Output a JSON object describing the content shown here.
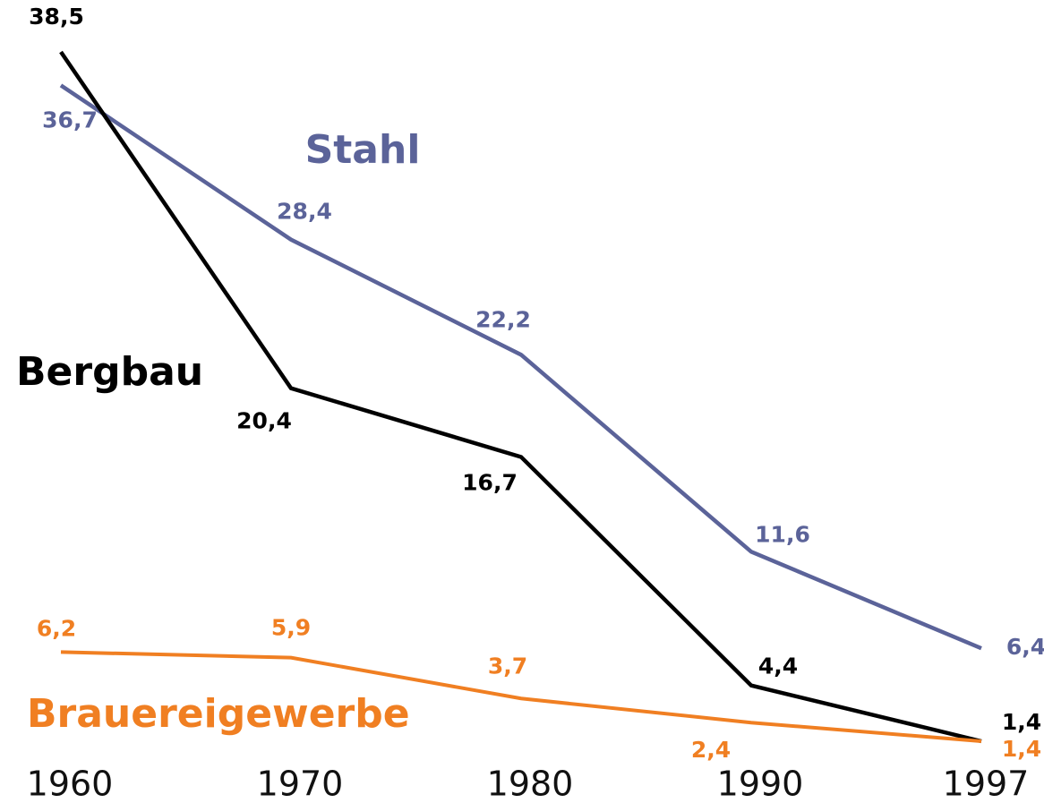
{
  "chart_data": {
    "type": "line",
    "categories": [
      "1960",
      "1970",
      "1980",
      "1990",
      "1997"
    ],
    "series": [
      {
        "name": "Stahl",
        "color": "#5b6399",
        "values": [
          36.7,
          28.4,
          22.2,
          11.6,
          6.4
        ],
        "value_labels": [
          "36,7",
          "28,4",
          "22,2",
          "11,6",
          "6,4"
        ]
      },
      {
        "name": "Bergbau",
        "color": "#000000",
        "values": [
          38.5,
          20.4,
          16.7,
          4.4,
          1.4
        ],
        "value_labels": [
          "38,5",
          "20,4",
          "16,7",
          "4,4",
          "1,4"
        ]
      },
      {
        "name": "Brauereigewerbe",
        "color": "#f07f22",
        "values": [
          6.2,
          5.9,
          3.7,
          2.4,
          1.4
        ],
        "value_labels": [
          "6,2",
          "5,9",
          "3,7",
          "2,4",
          "1,4"
        ]
      }
    ]
  }
}
